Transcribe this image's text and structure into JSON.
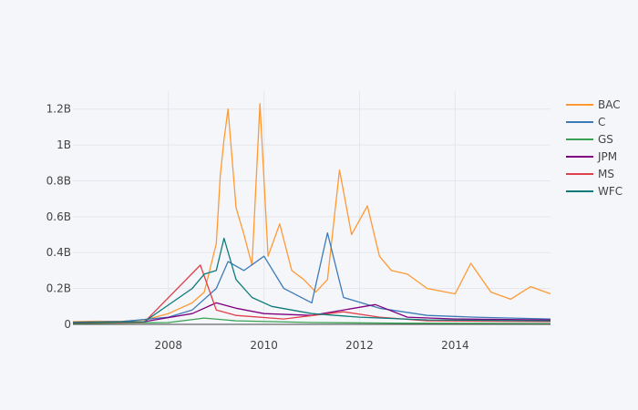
{
  "chart_data": {
    "type": "line",
    "title": "",
    "xlabel": "",
    "ylabel": "",
    "x_range": [
      "2006-01-01",
      "2015-12-31"
    ],
    "y_range": [
      0,
      1300000000
    ],
    "x_ticks": [
      {
        "value": "2008-01-01",
        "label": "2008"
      },
      {
        "value": "2010-01-01",
        "label": "2010"
      },
      {
        "value": "2012-01-01",
        "label": "2012"
      },
      {
        "value": "2014-01-01",
        "label": "2014"
      }
    ],
    "y_ticks": [
      {
        "value": 0,
        "label": "0"
      },
      {
        "value": 200000000,
        "label": "0.2B"
      },
      {
        "value": 400000000,
        "label": "0.4B"
      },
      {
        "value": 600000000,
        "label": "0.6B"
      },
      {
        "value": 800000000,
        "label": "0.8B"
      },
      {
        "value": 1000000000,
        "label": "1B"
      },
      {
        "value": 1200000000,
        "label": "1.2B"
      }
    ],
    "grid": true,
    "legend_position": "right",
    "series": [
      {
        "name": "BAC",
        "color": "#ff9933",
        "points": [
          [
            "2006-01-01",
            15000000
          ],
          [
            "2006-07-01",
            18000000
          ],
          [
            "2007-01-01",
            16000000
          ],
          [
            "2007-07-01",
            25000000
          ],
          [
            "2008-01-01",
            60000000
          ],
          [
            "2008-07-01",
            120000000
          ],
          [
            "2008-10-01",
            180000000
          ],
          [
            "2009-01-01",
            450000000
          ],
          [
            "2009-02-01",
            830000000
          ],
          [
            "2009-03-01",
            1030000000
          ],
          [
            "2009-04-01",
            1200000000
          ],
          [
            "2009-06-01",
            650000000
          ],
          [
            "2009-08-01",
            500000000
          ],
          [
            "2009-10-01",
            330000000
          ],
          [
            "2009-12-01",
            1230000000
          ],
          [
            "2010-02-01",
            380000000
          ],
          [
            "2010-05-01",
            560000000
          ],
          [
            "2010-08-01",
            300000000
          ],
          [
            "2010-11-01",
            250000000
          ],
          [
            "2011-02-01",
            180000000
          ],
          [
            "2011-05-01",
            250000000
          ],
          [
            "2011-08-01",
            860000000
          ],
          [
            "2011-11-01",
            500000000
          ],
          [
            "2012-03-01",
            660000000
          ],
          [
            "2012-06-01",
            380000000
          ],
          [
            "2012-09-01",
            300000000
          ],
          [
            "2013-01-01",
            280000000
          ],
          [
            "2013-06-01",
            200000000
          ],
          [
            "2014-01-01",
            170000000
          ],
          [
            "2014-05-01",
            340000000
          ],
          [
            "2014-10-01",
            180000000
          ],
          [
            "2015-03-01",
            140000000
          ],
          [
            "2015-08-01",
            210000000
          ],
          [
            "2015-12-31",
            170000000
          ]
        ]
      },
      {
        "name": "C",
        "color": "#3d7ab8",
        "points": [
          [
            "2006-01-01",
            12000000
          ],
          [
            "2007-01-01",
            15000000
          ],
          [
            "2008-01-01",
            40000000
          ],
          [
            "2008-07-01",
            80000000
          ],
          [
            "2009-01-01",
            200000000
          ],
          [
            "2009-04-01",
            350000000
          ],
          [
            "2009-08-01",
            300000000
          ],
          [
            "2010-01-01",
            380000000
          ],
          [
            "2010-06-01",
            200000000
          ],
          [
            "2011-01-01",
            120000000
          ],
          [
            "2011-05-01",
            510000000
          ],
          [
            "2011-09-01",
            150000000
          ],
          [
            "2012-06-01",
            90000000
          ],
          [
            "2013-06-01",
            50000000
          ],
          [
            "2014-06-01",
            40000000
          ],
          [
            "2015-12-31",
            30000000
          ]
        ]
      },
      {
        "name": "GS",
        "color": "#38a154",
        "points": [
          [
            "2006-01-01",
            5000000
          ],
          [
            "2008-01-01",
            10000000
          ],
          [
            "2008-10-01",
            35000000
          ],
          [
            "2009-06-01",
            20000000
          ],
          [
            "2011-01-01",
            10000000
          ],
          [
            "2013-01-01",
            6000000
          ],
          [
            "2015-12-31",
            4000000
          ]
        ]
      },
      {
        "name": "JPM",
        "color": "#800080",
        "points": [
          [
            "2006-01-01",
            10000000
          ],
          [
            "2007-07-01",
            15000000
          ],
          [
            "2008-07-01",
            60000000
          ],
          [
            "2009-01-01",
            120000000
          ],
          [
            "2009-06-01",
            90000000
          ],
          [
            "2010-01-01",
            60000000
          ],
          [
            "2011-01-01",
            50000000
          ],
          [
            "2012-05-01",
            110000000
          ],
          [
            "2013-01-01",
            40000000
          ],
          [
            "2014-01-01",
            30000000
          ],
          [
            "2015-12-31",
            25000000
          ]
        ]
      },
      {
        "name": "MS",
        "color": "#e0404c",
        "points": [
          [
            "2006-01-01",
            8000000
          ],
          [
            "2007-07-01",
            12000000
          ],
          [
            "2008-09-01",
            330000000
          ],
          [
            "2009-01-01",
            80000000
          ],
          [
            "2009-06-01",
            50000000
          ],
          [
            "2010-06-01",
            30000000
          ],
          [
            "2011-09-01",
            70000000
          ],
          [
            "2012-06-01",
            40000000
          ],
          [
            "2013-06-01",
            20000000
          ],
          [
            "2015-12-31",
            15000000
          ]
        ]
      },
      {
        "name": "WFC",
        "color": "#0d7a7a",
        "points": [
          [
            "2006-01-01",
            10000000
          ],
          [
            "2007-07-01",
            15000000
          ],
          [
            "2008-07-01",
            200000000
          ],
          [
            "2008-10-01",
            280000000
          ],
          [
            "2009-01-01",
            300000000
          ],
          [
            "2009-03-01",
            480000000
          ],
          [
            "2009-06-01",
            250000000
          ],
          [
            "2009-10-01",
            150000000
          ],
          [
            "2010-03-01",
            100000000
          ],
          [
            "2011-01-01",
            60000000
          ],
          [
            "2012-01-01",
            40000000
          ],
          [
            "2013-06-01",
            25000000
          ],
          [
            "2015-12-31",
            20000000
          ]
        ]
      }
    ]
  }
}
